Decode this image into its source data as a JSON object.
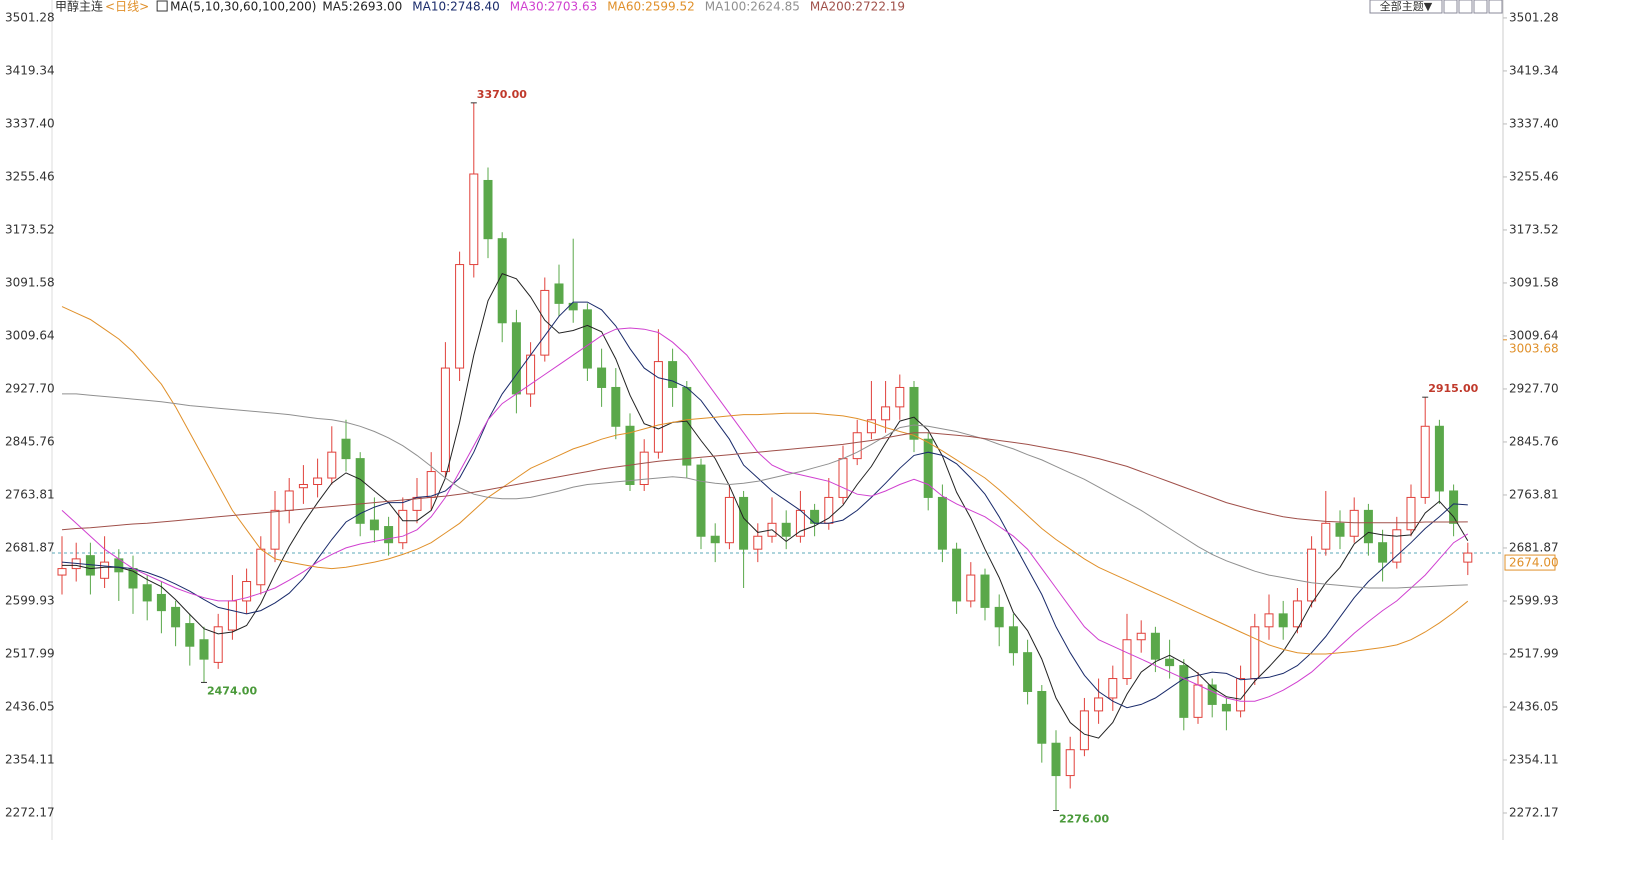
{
  "chart_data": {
    "type": "candlestick",
    "title": "甲醇主连",
    "period": "<日线>",
    "indicator": "MA(5,10,30,60,100,200)",
    "up_color": "#e0403a",
    "down_color": "#5aa84a",
    "ylim": [
      2233.5,
      3529
    ],
    "yticks": [
      3501.28,
      3419.34,
      {
        "value": 3337.4,
        "label": "3337.40"
      },
      3255.46,
      3173.52,
      3091.58,
      3009.64,
      {
        "value": 2927.7,
        "label": "2927.70"
      },
      2845.76,
      2763.81,
      2681.87,
      2599.93,
      2517.99,
      2436.05,
      2354.11,
      2272.17
    ],
    "candles": [
      [
        2640,
        2700,
        2610,
        2650
      ],
      [
        2650,
        2690,
        2630,
        2665
      ],
      [
        2670,
        2690,
        2610,
        2640
      ],
      [
        2635,
        2700,
        2620,
        2660
      ],
      [
        2665,
        2680,
        2600,
        2645
      ],
      [
        2650,
        2670,
        2580,
        2620
      ],
      [
        2625,
        2640,
        2570,
        2600
      ],
      [
        2610,
        2630,
        2550,
        2585
      ],
      [
        2590,
        2600,
        2530,
        2560
      ],
      [
        2565,
        2580,
        2500,
        2530
      ],
      [
        2540,
        2560,
        2474,
        2510
      ],
      [
        2505,
        2580,
        2495,
        2560
      ],
      [
        2555,
        2640,
        2540,
        2600
      ],
      [
        2600,
        2650,
        2580,
        2630
      ],
      [
        2625,
        2700,
        2610,
        2680
      ],
      [
        2680,
        2770,
        2660,
        2740
      ],
      [
        2740,
        2790,
        2720,
        2770
      ],
      [
        2775,
        2810,
        2750,
        2780
      ],
      [
        2780,
        2820,
        2760,
        2790
      ],
      [
        2790,
        2870,
        2780,
        2830
      ],
      [
        2850,
        2880,
        2800,
        2820
      ],
      [
        2820,
        2830,
        2700,
        2720
      ],
      [
        2725,
        2760,
        2690,
        2710
      ],
      [
        2715,
        2730,
        2670,
        2690
      ],
      [
        2690,
        2760,
        2680,
        2740
      ],
      [
        2740,
        2790,
        2720,
        2760
      ],
      [
        2760,
        2830,
        2740,
        2800
      ],
      [
        2800,
        3000,
        2790,
        2960
      ],
      [
        2960,
        3140,
        2940,
        3120
      ],
      [
        3120,
        3370,
        3100,
        3260
      ],
      [
        3250,
        3270,
        3130,
        3160
      ],
      [
        3160,
        3170,
        3000,
        3030
      ],
      [
        3030,
        3050,
        2890,
        2920
      ],
      [
        2920,
        3000,
        2900,
        2980
      ],
      [
        2980,
        3100,
        2970,
        3080
      ],
      [
        3090,
        3120,
        3040,
        3060
      ],
      [
        3060,
        3160,
        3030,
        3050
      ],
      [
        3050,
        3060,
        2940,
        2960
      ],
      [
        2960,
        2990,
        2900,
        2930
      ],
      [
        2930,
        2960,
        2850,
        2870
      ],
      [
        2870,
        2890,
        2770,
        2780
      ],
      [
        2780,
        2850,
        2770,
        2830
      ],
      [
        2830,
        3020,
        2820,
        2970
      ],
      [
        2970,
        2990,
        2900,
        2930
      ],
      [
        2930,
        2940,
        2790,
        2810
      ],
      [
        2810,
        2820,
        2680,
        2700
      ],
      [
        2700,
        2720,
        2660,
        2690
      ],
      [
        2690,
        2780,
        2680,
        2760
      ],
      [
        2760,
        2770,
        2620,
        2680
      ],
      [
        2680,
        2720,
        2660,
        2700
      ],
      [
        2700,
        2760,
        2690,
        2720
      ],
      [
        2720,
        2740,
        2680,
        2700
      ],
      [
        2700,
        2770,
        2690,
        2740
      ],
      [
        2740,
        2750,
        2700,
        2720
      ],
      [
        2720,
        2790,
        2710,
        2760
      ],
      [
        2760,
        2840,
        2750,
        2820
      ],
      [
        2820,
        2880,
        2810,
        2860
      ],
      [
        2860,
        2940,
        2850,
        2880
      ],
      [
        2880,
        2940,
        2860,
        2900
      ],
      [
        2900,
        2950,
        2880,
        2930
      ],
      [
        2930,
        2940,
        2830,
        2850
      ],
      [
        2850,
        2860,
        2740,
        2760
      ],
      [
        2760,
        2780,
        2660,
        2680
      ],
      [
        2680,
        2690,
        2580,
        2600
      ],
      [
        2600,
        2660,
        2590,
        2640
      ],
      [
        2640,
        2650,
        2570,
        2590
      ],
      [
        2590,
        2610,
        2530,
        2560
      ],
      [
        2560,
        2580,
        2500,
        2520
      ],
      [
        2520,
        2540,
        2440,
        2460
      ],
      [
        2460,
        2470,
        2350,
        2380
      ],
      [
        2380,
        2400,
        2276,
        2330
      ],
      [
        2330,
        2390,
        2310,
        2370
      ],
      [
        2370,
        2450,
        2360,
        2430
      ],
      [
        2430,
        2480,
        2410,
        2450
      ],
      [
        2450,
        2500,
        2430,
        2480
      ],
      [
        2480,
        2580,
        2470,
        2540
      ],
      [
        2540,
        2570,
        2520,
        2550
      ],
      [
        2550,
        2560,
        2490,
        2510
      ],
      [
        2510,
        2540,
        2480,
        2500
      ],
      [
        2500,
        2510,
        2400,
        2420
      ],
      [
        2420,
        2490,
        2410,
        2470
      ],
      [
        2470,
        2480,
        2420,
        2440
      ],
      [
        2440,
        2450,
        2400,
        2430
      ],
      [
        2430,
        2500,
        2420,
        2480
      ],
      [
        2480,
        2580,
        2470,
        2560
      ],
      [
        2560,
        2610,
        2540,
        2580
      ],
      [
        2580,
        2600,
        2540,
        2560
      ],
      [
        2560,
        2620,
        2550,
        2600
      ],
      [
        2600,
        2700,
        2590,
        2680
      ],
      [
        2680,
        2770,
        2670,
        2720
      ],
      [
        2720,
        2740,
        2680,
        2700
      ],
      [
        2700,
        2760,
        2690,
        2740
      ],
      [
        2740,
        2750,
        2670,
        2690
      ],
      [
        2690,
        2710,
        2630,
        2660
      ],
      [
        2660,
        2730,
        2650,
        2710
      ],
      [
        2710,
        2780,
        2700,
        2760
      ],
      [
        2760,
        2915,
        2750,
        2870
      ],
      [
        2870,
        2880,
        2750,
        2770
      ],
      [
        2770,
        2780,
        2700,
        2720
      ],
      [
        2660,
        2690,
        2640,
        2674
      ]
    ],
    "series": [
      {
        "name": "MA5:2693.00",
        "color": "#222222",
        "values": [
          2655,
          2655,
          2650,
          2652,
          2652,
          2646,
          2633,
          2622,
          2602,
          2579,
          2557,
          2549,
          2552,
          2562,
          2596,
          2642,
          2684,
          2720,
          2752,
          2782,
          2798,
          2788,
          2770,
          2752,
          2724,
          2724,
          2740,
          2790,
          2876,
          2980,
          3064,
          3106,
          3098,
          3070,
          3034,
          3014,
          3018,
          3026,
          3016,
          2974,
          2918,
          2874,
          2866,
          2876,
          2878,
          2848,
          2820,
          2778,
          2728,
          2706,
          2710,
          2692,
          2708,
          2716,
          2728,
          2748,
          2780,
          2808,
          2844,
          2878,
          2884,
          2864,
          2824,
          2768,
          2728,
          2680,
          2636,
          2582,
          2554,
          2510,
          2450,
          2412,
          2394,
          2388,
          2412,
          2456,
          2490,
          2506,
          2516,
          2504,
          2488,
          2466,
          2452,
          2448,
          2476,
          2498,
          2522,
          2556,
          2596,
          2628,
          2652,
          2688,
          2706,
          2702,
          2700,
          2702,
          2736,
          2754,
          2730,
          2693
        ]
      },
      {
        "name": "MA10:2748.40",
        "color": "#1a2b6b",
        "values": [
          2660,
          2658,
          2656,
          2654,
          2652,
          2650,
          2644,
          2636,
          2626,
          2615,
          2602,
          2590,
          2585,
          2580,
          2585,
          2597,
          2612,
          2635,
          2665,
          2695,
          2722,
          2735,
          2745,
          2752,
          2752,
          2760,
          2762,
          2770,
          2790,
          2830,
          2880,
          2920,
          2950,
          2980,
          3010,
          3040,
          3062,
          3062,
          3050,
          3025,
          2990,
          2960,
          2945,
          2940,
          2930,
          2910,
          2880,
          2850,
          2810,
          2790,
          2770,
          2755,
          2740,
          2720,
          2720,
          2725,
          2740,
          2760,
          2782,
          2805,
          2825,
          2830,
          2825,
          2812,
          2790,
          2765,
          2730,
          2690,
          2650,
          2610,
          2560,
          2520,
          2485,
          2460,
          2445,
          2435,
          2440,
          2450,
          2465,
          2480,
          2485,
          2490,
          2488,
          2478,
          2480,
          2482,
          2488,
          2500,
          2520,
          2545,
          2575,
          2605,
          2630,
          2650,
          2670,
          2690,
          2712,
          2730,
          2750,
          2748.4
        ]
      },
      {
        "name": "MA30:2703.63",
        "color": "#d040d0",
        "values": [
          2740,
          2720,
          2700,
          2680,
          2665,
          2650,
          2640,
          2630,
          2620,
          2612,
          2605,
          2600,
          2600,
          2605,
          2612,
          2620,
          2632,
          2645,
          2660,
          2672,
          2682,
          2688,
          2692,
          2696,
          2700,
          2710,
          2730,
          2760,
          2800,
          2840,
          2880,
          2905,
          2920,
          2935,
          2950,
          2965,
          2980,
          2995,
          3010,
          3020,
          3022,
          3020,
          3015,
          3000,
          2980,
          2950,
          2920,
          2890,
          2860,
          2830,
          2810,
          2800,
          2795,
          2790,
          2785,
          2775,
          2765,
          2762,
          2770,
          2780,
          2788,
          2780,
          2762,
          2750,
          2740,
          2730,
          2715,
          2700,
          2680,
          2650,
          2620,
          2590,
          2560,
          2540,
          2530,
          2520,
          2510,
          2500,
          2490,
          2480,
          2470,
          2460,
          2450,
          2445,
          2445,
          2452,
          2462,
          2475,
          2490,
          2510,
          2530,
          2550,
          2568,
          2585,
          2600,
          2620,
          2640,
          2665,
          2690,
          2703.63
        ]
      },
      {
        "name": "MA60:2599.52",
        "color": "#e0902a",
        "values": [
          3055,
          3045,
          3035,
          3020,
          3005,
          2985,
          2960,
          2935,
          2900,
          2860,
          2820,
          2780,
          2740,
          2710,
          2680,
          2665,
          2660,
          2656,
          2652,
          2650,
          2652,
          2656,
          2660,
          2665,
          2672,
          2680,
          2690,
          2705,
          2720,
          2740,
          2760,
          2775,
          2790,
          2805,
          2815,
          2825,
          2835,
          2842,
          2850,
          2856,
          2860,
          2866,
          2872,
          2876,
          2880,
          2882,
          2884,
          2886,
          2888,
          2888,
          2889,
          2890,
          2890,
          2890,
          2888,
          2886,
          2882,
          2876,
          2868,
          2862,
          2856,
          2845,
          2832,
          2818,
          2804,
          2790,
          2772,
          2752,
          2732,
          2712,
          2695,
          2680,
          2665,
          2652,
          2642,
          2632,
          2622,
          2612,
          2602,
          2592,
          2582,
          2572,
          2562,
          2552,
          2542,
          2532,
          2525,
          2520,
          2518,
          2518,
          2520,
          2522,
          2525,
          2528,
          2532,
          2540,
          2552,
          2566,
          2582,
          2599.52
        ]
      },
      {
        "name": "MA100:2624.85",
        "color": "#909090",
        "values": [
          2920,
          2920,
          2918,
          2916,
          2914,
          2912,
          2910,
          2908,
          2905,
          2902,
          2900,
          2898,
          2896,
          2894,
          2892,
          2890,
          2888,
          2885,
          2882,
          2880,
          2876,
          2870,
          2862,
          2852,
          2840,
          2825,
          2808,
          2790,
          2775,
          2765,
          2760,
          2758,
          2758,
          2760,
          2765,
          2770,
          2776,
          2780,
          2782,
          2784,
          2786,
          2788,
          2790,
          2792,
          2790,
          2785,
          2782,
          2780,
          2782,
          2785,
          2790,
          2795,
          2800,
          2806,
          2812,
          2820,
          2830,
          2842,
          2855,
          2868,
          2872,
          2870,
          2866,
          2862,
          2856,
          2850,
          2842,
          2835,
          2826,
          2818,
          2808,
          2798,
          2788,
          2776,
          2764,
          2752,
          2740,
          2726,
          2712,
          2698,
          2684,
          2672,
          2662,
          2654,
          2646,
          2640,
          2636,
          2632,
          2628,
          2626,
          2624,
          2622,
          2620,
          2620,
          2620,
          2621,
          2622,
          2623,
          2624,
          2624.85
        ]
      },
      {
        "name": "MA200:2722.19",
        "color": "#a0504a",
        "values": [
          2710,
          2712,
          2713,
          2715,
          2717,
          2719,
          2720,
          2722,
          2724,
          2726,
          2728,
          2730,
          2732,
          2734,
          2736,
          2738,
          2740,
          2742,
          2744,
          2746,
          2748,
          2750,
          2752,
          2754,
          2756,
          2758,
          2760,
          2762,
          2765,
          2768,
          2772,
          2776,
          2780,
          2784,
          2788,
          2792,
          2796,
          2800,
          2804,
          2807,
          2810,
          2813,
          2816,
          2818,
          2820,
          2822,
          2824,
          2826,
          2828,
          2830,
          2832,
          2834,
          2836,
          2838,
          2840,
          2842,
          2845,
          2848,
          2852,
          2856,
          2860,
          2860,
          2858,
          2856,
          2854,
          2851,
          2848,
          2845,
          2842,
          2838,
          2834,
          2830,
          2825,
          2820,
          2814,
          2808,
          2800,
          2792,
          2784,
          2776,
          2768,
          2760,
          2752,
          2746,
          2740,
          2735,
          2730,
          2727,
          2725,
          2723,
          2722,
          2721,
          2721,
          2721,
          2721,
          2721,
          2722,
          2722,
          2722,
          2722.19
        ]
      }
    ],
    "last_price": {
      "value": 2674,
      "label": "2674.00",
      "color": "#e0902a",
      "line_color": "#5ba8b8"
    },
    "price_markers": [
      {
        "value": 3003.68,
        "label": "3003.68",
        "color": "#e0902a"
      }
    ],
    "annotations": [
      {
        "value": 3370,
        "label": "3370.00",
        "color": "#c0392b"
      },
      {
        "value": 2474,
        "label": "2474.00",
        "color": "#4a9a3a"
      },
      {
        "value": 2276,
        "label": "2276.00",
        "color": "#4a9a3a"
      },
      {
        "value": 2915,
        "label": "2915.00",
        "color": "#c0392b"
      }
    ]
  },
  "toolbar": {
    "button": "全部主题▼"
  }
}
